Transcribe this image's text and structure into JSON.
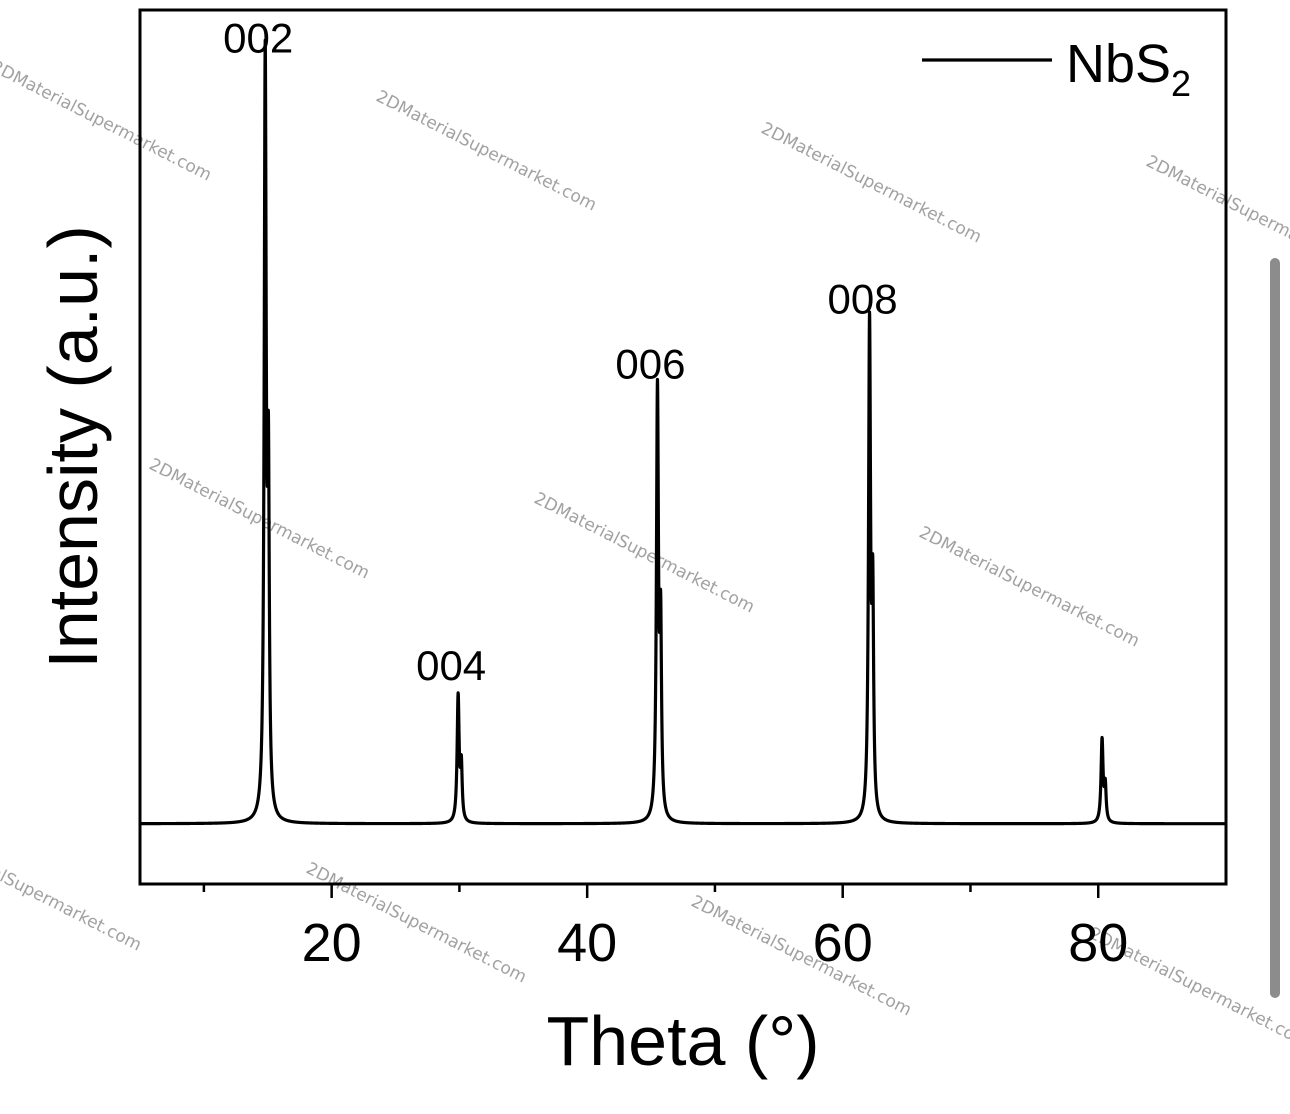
{
  "chart_data": {
    "type": "line",
    "xlabel": "Theta (°)",
    "ylabel": "Intensity (a.u.)",
    "xlim": [
      5,
      90
    ],
    "ylim": [
      -0.08,
      1.08
    ],
    "x_ticks": [
      20,
      40,
      60,
      80
    ],
    "x_minor_ticks": [
      10,
      30,
      50,
      70
    ],
    "legend": {
      "position": "top-right",
      "entries": [
        {
          "name": "NbS",
          "subscript": "2"
        }
      ]
    },
    "series": [
      {
        "name": "NbS2",
        "color": "#000000",
        "baseline": 0.0,
        "peaks": [
          {
            "x": 14.8,
            "height": 1.0,
            "label": "002"
          },
          {
            "x": 29.9,
            "height": 0.167,
            "label": "004"
          },
          {
            "x": 45.5,
            "height": 0.567,
            "label": "006"
          },
          {
            "x": 62.1,
            "height": 0.653,
            "label": "008"
          },
          {
            "x": 80.3,
            "height": 0.11,
            "label": ""
          }
        ]
      }
    ],
    "annotations": [
      "002",
      "004",
      "006",
      "008"
    ],
    "grid": false
  },
  "watermark": {
    "text": "2DMaterialSupermarket.com"
  },
  "scrollbar": {
    "color": "#8c8c8c"
  }
}
